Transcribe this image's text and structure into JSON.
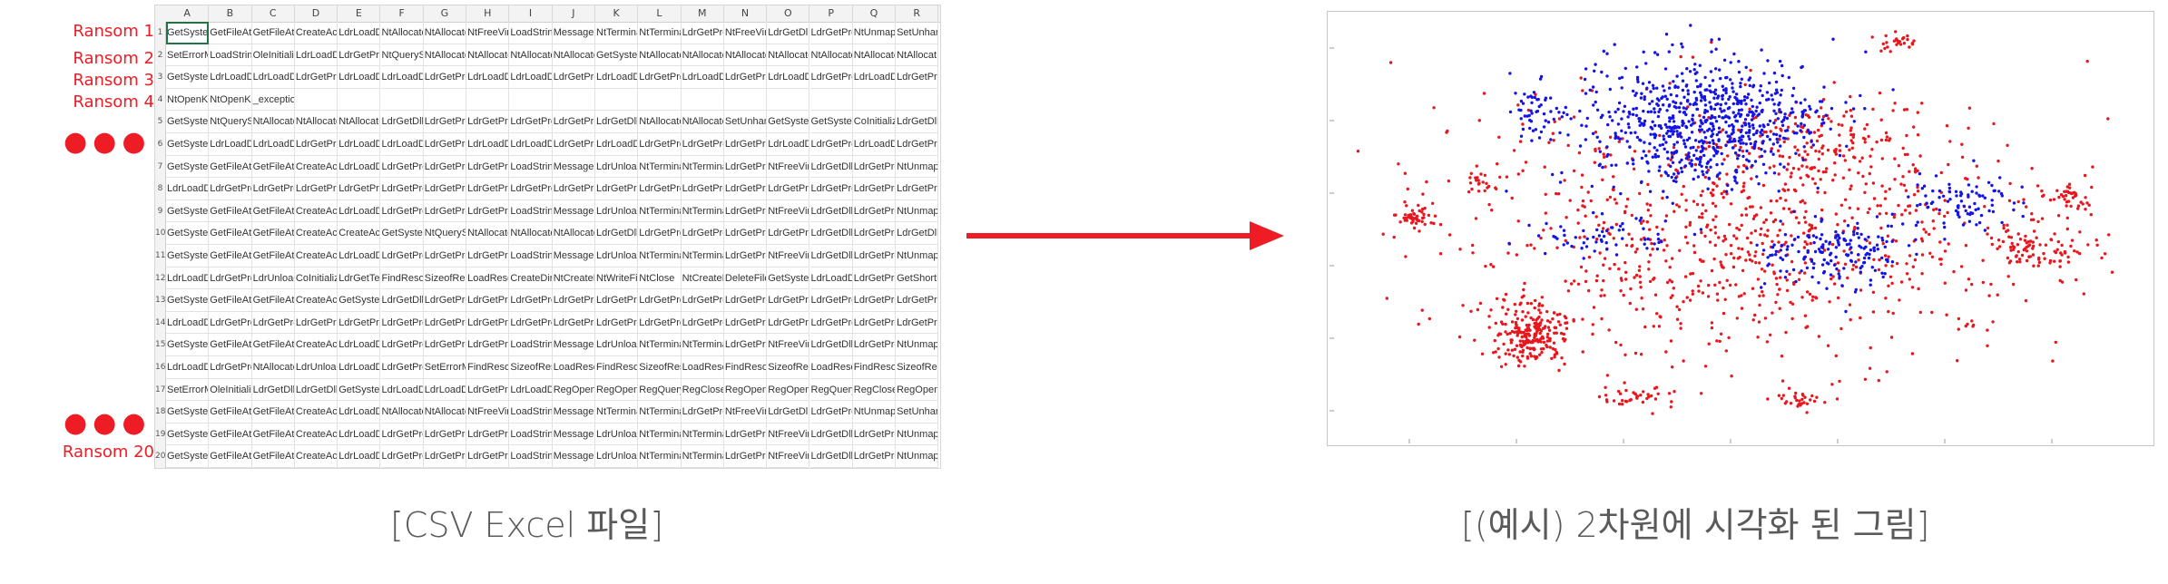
{
  "ransom_labels": [
    "Ransom 1",
    "Ransom 2",
    "Ransom 3",
    "Ransom 4",
    "Ransom 20"
  ],
  "ellipsis": "●●●",
  "columns": [
    "A",
    "B",
    "C",
    "D",
    "E",
    "F",
    "G",
    "H",
    "I",
    "J",
    "K",
    "L",
    "M",
    "N",
    "O",
    "P",
    "Q",
    "R"
  ],
  "rows": [
    [
      "GetSystem",
      "GetFileAtt",
      "GetFileAtt",
      "CreateAct",
      "LdrLoadDl",
      "NtAllocate",
      "NtAllocate",
      "NtFreeVirt",
      "LoadString",
      "MessageB",
      "NtTermina",
      "NtTermina",
      "LdrGetPro",
      "NtFreeVirt",
      "LdrGetDll",
      "LdrGetPro",
      "NtUnmap",
      "SetUnhan"
    ],
    [
      "SetErrorM",
      "LoadString",
      "OleInitiali",
      "LdrLoadDl",
      "LdrGetPro",
      "NtQuerySy",
      "NtAllocate",
      "NtAllocate",
      "NtAllocate",
      "NtAllocate",
      "GetSystem",
      "NtAllocate",
      "NtAllocate",
      "NtAllocate",
      "NtAllocate",
      "NtAllocate",
      "NtAllocate",
      "NtAllocat"
    ],
    [
      "GetSystem",
      "LdrLoadDl",
      "LdrLoadDl",
      "LdrGetPro",
      "LdrLoadDl",
      "LdrLoadDl",
      "LdrGetPro",
      "LdrLoadDl",
      "LdrLoadDl",
      "LdrGetPro",
      "LdrLoadDl",
      "LdrGetPro",
      "LdrLoadDl",
      "LdrGetPro",
      "LdrLoadDl",
      "LdrGetPro",
      "LdrLoadDl",
      "LdrGetPro"
    ],
    [
      "NtOpenKe",
      "NtOpenKe",
      "_exception_",
      "",
      "",
      "",
      "",
      "",
      "",
      "",
      "",
      "",
      "",
      "",
      "",
      "",
      "",
      ""
    ],
    [
      "GetSystem",
      "NtQuerySy",
      "NtAllocate",
      "NtAllocate",
      "NtAllocate",
      "LdrGetDll",
      "LdrGetPro",
      "LdrGetPro",
      "LdrGetPro",
      "LdrGetPro",
      "LdrGetDll",
      "NtAllocate",
      "NtAllocate",
      "SetUnhan",
      "GetSystem",
      "GetSystem",
      "CoInitializ",
      "LdrGetDll"
    ],
    [
      "GetSystem",
      "LdrLoadDl",
      "LdrLoadDl",
      "LdrGetPro",
      "LdrLoadDl",
      "LdrLoadDl",
      "LdrGetPro",
      "LdrLoadDl",
      "LdrLoadDl",
      "LdrGetPro",
      "LdrLoadDl",
      "LdrGetPro",
      "LdrGetPro",
      "LdrGetPro",
      "LdrLoadDl",
      "LdrGetPro",
      "LdrLoadDl",
      "LdrGetPro"
    ],
    [
      "GetSystem",
      "GetFileAtt",
      "GetFileAtt",
      "CreateAct",
      "LdrLoadDl",
      "LdrGetPro",
      "LdrGetPro",
      "LdrGetPro",
      "LoadString",
      "MessageB",
      "LdrUnloac",
      "NtTermina",
      "NtTermina",
      "LdrGetPro",
      "NtFreeVirt",
      "LdrGetDll",
      "LdrGetPro",
      "NtUnmap"
    ],
    [
      "LdrLoadDl",
      "LdrGetPro",
      "LdrGetPro",
      "LdrGetPro",
      "LdrGetPro",
      "LdrGetPro",
      "LdrGetPro",
      "LdrGetPro",
      "LdrGetPro",
      "LdrGetPro",
      "LdrGetPro",
      "LdrGetPro",
      "LdrGetPro",
      "LdrGetPro",
      "LdrGetPro",
      "LdrGetPro",
      "LdrGetPro",
      "LdrGetPro"
    ],
    [
      "GetSystem",
      "GetFileAtt",
      "GetFileAtt",
      "CreateAct",
      "LdrLoadDl",
      "LdrGetPro",
      "LdrGetPro",
      "LdrGetPro",
      "LoadString",
      "MessageB",
      "LdrUnloac",
      "NtTermina",
      "NtTermina",
      "LdrGetPro",
      "NtFreeVirt",
      "LdrGetDll",
      "LdrGetPro",
      "NtUnmap"
    ],
    [
      "GetSystem",
      "GetFileAtt",
      "GetFileAtt",
      "CreateAct",
      "CreateAct",
      "GetSystem",
      "NtQuerySy",
      "NtAllocate",
      "NtAllocate",
      "NtAllocate",
      "LdrGetDll",
      "LdrGetPro",
      "LdrGetPro",
      "LdrGetPro",
      "LdrGetPro",
      "LdrGetDll",
      "LdrGetPro",
      "LdrGetDll"
    ],
    [
      "GetSystem",
      "GetFileAtt",
      "GetFileAtt",
      "CreateAct",
      "LdrLoadDl",
      "LdrGetPro",
      "LdrGetPro",
      "LdrGetPro",
      "LoadString",
      "MessageB",
      "LdrUnloac",
      "NtTermina",
      "NtTermina",
      "LdrGetPro",
      "NtFreeVirt",
      "LdrGetDll",
      "LdrGetPro",
      "NtUnmap"
    ],
    [
      "LdrLoadDl",
      "LdrGetPro",
      "LdrUnloac",
      "CoInitializ",
      "LdrGetTemp",
      "FindResou",
      "SizeofResc",
      "LoadResou",
      "CreateDire",
      "NtCreateFi",
      "NtWriteFile",
      "NtClose",
      "NtCreateFi",
      "DeleteFile",
      "GetSystem",
      "LdrLoadDl",
      "LdrGetPro",
      "GetShortl"
    ],
    [
      "GetSystem",
      "GetFileAtt",
      "GetFileAtt",
      "CreateAct",
      "GetSystem",
      "LdrGetDll",
      "LdrGetPro",
      "LdrGetPro",
      "LdrGetPro",
      "LdrGetPro",
      "LdrGetPro",
      "LdrGetPro",
      "LdrGetPro",
      "LdrGetPro",
      "LdrGetPro",
      "LdrGetPro",
      "LdrGetPro",
      "LdrGetPro"
    ],
    [
      "LdrLoadDl",
      "LdrGetPro",
      "LdrGetPro",
      "LdrGetPro",
      "LdrGetPro",
      "LdrGetPro",
      "LdrGetPro",
      "LdrGetPro",
      "LdrGetPro",
      "LdrGetPro",
      "LdrGetPro",
      "LdrGetPro",
      "LdrGetPro",
      "LdrGetPro",
      "LdrGetPro",
      "LdrGetPro",
      "LdrGetPro",
      "LdrGetPro"
    ],
    [
      "GetSystem",
      "GetFileAtt",
      "GetFileAtt",
      "CreateAct",
      "LdrLoadDl",
      "LdrGetPro",
      "LdrGetPro",
      "LdrGetPro",
      "LoadString",
      "MessageB",
      "LdrUnloac",
      "NtTermina",
      "NtTermina",
      "LdrGetPro",
      "NtFreeVirt",
      "LdrGetDll",
      "LdrGetPro",
      "NtUnmap"
    ],
    [
      "LdrLoadDl",
      "LdrGetPro",
      "NtAllocate",
      "LdrUnloac",
      "LdrLoadDl",
      "LdrGetPro",
      "SetErrorM",
      "FindResou",
      "SizeofResc",
      "LoadResou",
      "FindResou",
      "SizeofResc",
      "LoadResou",
      "FindResou",
      "SizeofResc",
      "LoadResou",
      "FindResou",
      "SizeofRes"
    ],
    [
      "SetErrorM",
      "OleInitiali",
      "LdrGetDll",
      "LdrGetDll",
      "GetSystem",
      "LdrLoadDl",
      "LdrLoadDl",
      "LdrGetPro",
      "LdrLoadDl",
      "RegOpenK",
      "RegOpenK",
      "RegQuery",
      "RegCloseK",
      "RegOpenK",
      "RegOpenK",
      "RegQuery",
      "RegCloseK",
      "RegOpen"
    ],
    [
      "GetSystem",
      "GetFileAtt",
      "GetFileAtt",
      "CreateAct",
      "LdrLoadDl",
      "NtAllocate",
      "NtAllocate",
      "NtFreeVirt",
      "LoadString",
      "MessageB",
      "NtTermina",
      "NtTermina",
      "LdrGetPro",
      "NtFreeVirt",
      "LdrGetDll",
      "LdrGetPro",
      "NtUnmap",
      "SetUnhan"
    ],
    [
      "GetSystem",
      "GetFileAtt",
      "GetFileAtt",
      "CreateAct",
      "LdrLoadDl",
      "LdrGetPro",
      "LdrGetPro",
      "LdrGetPro",
      "LoadString",
      "MessageB",
      "LdrUnloac",
      "NtTermina",
      "NtTermina",
      "LdrGetPro",
      "NtFreeVirt",
      "LdrGetDll",
      "LdrGetPro",
      "NtUnmap"
    ],
    [
      "GetSystem",
      "GetFileAtt",
      "GetFileAtt",
      "CreateAct",
      "LdrLoadDl",
      "LdrGetPro",
      "LdrGetPro",
      "LdrGetPro",
      "LoadString",
      "MessageB",
      "LdrUnloac",
      "NtTermina",
      "NtTermina",
      "LdrGetPro",
      "NtFreeVirt",
      "LdrGetDll",
      "LdrGetPro",
      "NtUnmap"
    ]
  ],
  "colors": {
    "red": "#e8161d",
    "blue": "#1414e6",
    "arrow": "#ee1c24",
    "label": "#ee1c24"
  },
  "captions": {
    "left": "[CSV Excel 파일]",
    "right": "[(예시) 2차원에 시각화 된 그림]"
  },
  "chart_data": {
    "type": "scatter",
    "title": "",
    "xlabel": "",
    "ylabel": "",
    "series": [
      {
        "color": "#e8161d",
        "clusters": [
          {
            "cx": 0.5,
            "cy": 0.5,
            "sx": 0.2,
            "sy": 0.16,
            "n": 900
          },
          {
            "cx": 0.23,
            "cy": 0.76,
            "sx": 0.025,
            "sy": 0.035,
            "n": 220
          },
          {
            "cx": 0.08,
            "cy": 0.47,
            "sx": 0.012,
            "sy": 0.012,
            "n": 40
          },
          {
            "cx": 0.88,
            "cy": 0.55,
            "sx": 0.03,
            "sy": 0.03,
            "n": 90
          },
          {
            "cx": 0.93,
            "cy": 0.42,
            "sx": 0.015,
            "sy": 0.02,
            "n": 40
          },
          {
            "cx": 0.36,
            "cy": 0.91,
            "sx": 0.03,
            "sy": 0.015,
            "n": 40
          },
          {
            "cx": 0.58,
            "cy": 0.92,
            "sx": 0.02,
            "sy": 0.012,
            "n": 30
          },
          {
            "cx": 0.7,
            "cy": 0.04,
            "sx": 0.012,
            "sy": 0.01,
            "n": 25
          },
          {
            "cx": 0.16,
            "cy": 0.39,
            "sx": 0.01,
            "sy": 0.012,
            "n": 20
          },
          {
            "cx": 0.6,
            "cy": 0.3,
            "sx": 0.06,
            "sy": 0.05,
            "n": 120
          }
        ]
      },
      {
        "color": "#1414e6",
        "clusters": [
          {
            "cx": 0.45,
            "cy": 0.24,
            "sx": 0.075,
            "sy": 0.08,
            "n": 750
          },
          {
            "cx": 0.62,
            "cy": 0.56,
            "sx": 0.045,
            "sy": 0.04,
            "n": 170
          },
          {
            "cx": 0.24,
            "cy": 0.22,
            "sx": 0.02,
            "sy": 0.03,
            "n": 50
          },
          {
            "cx": 0.78,
            "cy": 0.44,
            "sx": 0.035,
            "sy": 0.035,
            "n": 90
          },
          {
            "cx": 0.32,
            "cy": 0.52,
            "sx": 0.05,
            "sy": 0.03,
            "n": 60
          }
        ]
      }
    ],
    "legend": "none",
    "grid": false
  }
}
